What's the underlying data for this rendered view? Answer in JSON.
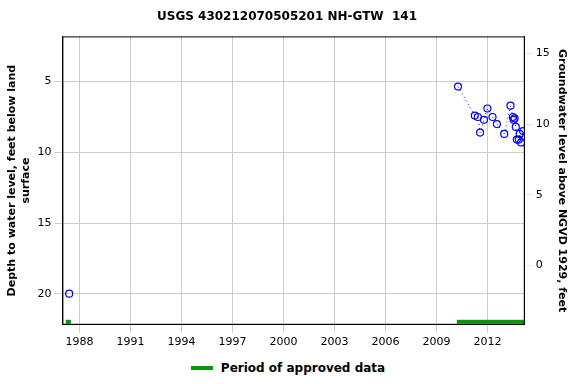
{
  "chart_data": {
    "type": "scatter",
    "title": "USGS 430212070505201 NH-GTW  141",
    "y_label": [
      "Depth to water level, feet below land",
      "surface"
    ],
    "y2_label": "Groundwater level above NGVD 1929, feet",
    "xlim": [
      1987,
      2014.2
    ],
    "xticks": [
      1988,
      1991,
      1994,
      1997,
      2000,
      2003,
      2006,
      2009,
      2012
    ],
    "ylim": [
      22.2,
      1.8
    ],
    "yticks": [
      5,
      10,
      15,
      20
    ],
    "y2lim": [
      -4.2,
      16.2
    ],
    "y2ticks": [
      0,
      5,
      10,
      15
    ],
    "grid": true,
    "legend": "bottom",
    "series": [
      {
        "color": "#0000ff",
        "marker": "circle",
        "line_style": "none",
        "x": [
          1987.4
        ],
        "values": [
          20.0
        ]
      },
      {
        "color": "#0000ff",
        "marker": "circle",
        "line_style": "dotted",
        "x": [
          2010.27,
          2011.26,
          2011.44,
          2011.57,
          2011.8,
          2012.0,
          2012.3,
          2012.56,
          2012.99,
          2013.36,
          2013.5,
          2013.54,
          2013.6,
          2013.67,
          2013.73,
          2013.85,
          2013.9,
          2013.98,
          2014.1
        ],
        "values": [
          5.35,
          7.4,
          7.5,
          8.6,
          7.7,
          6.9,
          7.5,
          8.0,
          8.7,
          6.7,
          7.5,
          7.7,
          7.6,
          8.2,
          9.1,
          9.1,
          8.7,
          9.3,
          8.5
        ]
      }
    ],
    "approved_periods": {
      "name": "Period of approved data",
      "color": "#009900",
      "periods": [
        [
          1987.2,
          1987.5
        ],
        [
          2010.2,
          2014.2
        ]
      ]
    }
  }
}
